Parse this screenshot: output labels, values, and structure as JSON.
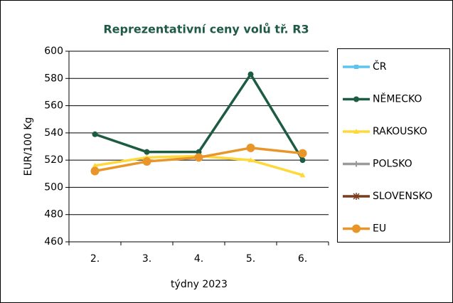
{
  "chart_data": {
    "type": "line",
    "title": "Reprezentativní  ceny volů tř. R3",
    "title_color": "#1f5a45",
    "xlabel": "týdny 2023",
    "ylabel": "EUR/100 Kg",
    "categories": [
      "2.",
      "3.",
      "4.",
      "5.",
      "6."
    ],
    "ylim": [
      460,
      600
    ],
    "yticks": [
      460,
      480,
      500,
      520,
      540,
      560,
      580,
      600
    ],
    "grid": true,
    "legend": "right",
    "series": [
      {
        "name": "ČR",
        "color": "#5ec4ee",
        "marker": "square",
        "values": [
          null,
          null,
          null,
          null,
          null
        ]
      },
      {
        "name": "NĚMECKO",
        "color": "#1d5c42",
        "marker": "circle",
        "values": [
          539,
          526,
          526,
          583,
          520
        ]
      },
      {
        "name": "RAKOUSKO",
        "color": "#ffd83a",
        "marker": "triangle",
        "values": [
          516,
          522,
          523,
          520,
          509
        ]
      },
      {
        "name": "POLSKO",
        "color": "#9a9a9a",
        "marker": "plus",
        "values": [
          null,
          null,
          null,
          null,
          null
        ]
      },
      {
        "name": "SLOVENSKO",
        "color": "#7a3b1e",
        "marker": "star",
        "values": [
          null,
          null,
          null,
          null,
          null
        ]
      },
      {
        "name": "EU",
        "color": "#e8952a",
        "marker": "bigcircle",
        "values": [
          512,
          519,
          522,
          529,
          525
        ]
      }
    ]
  }
}
